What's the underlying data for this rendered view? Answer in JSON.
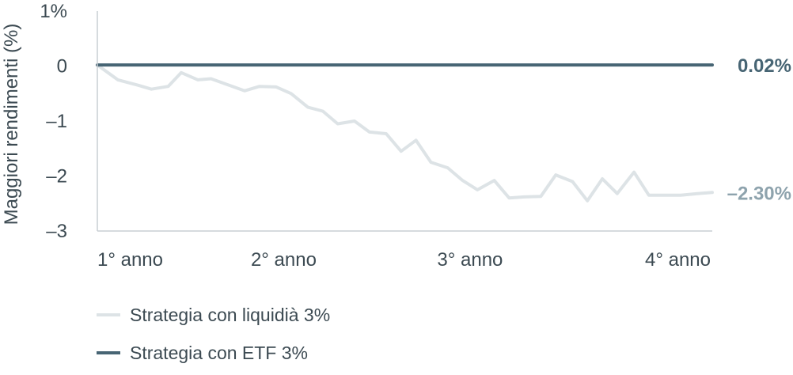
{
  "chart_data": {
    "type": "line",
    "ylabel": "Maggiori rendimenti (%)",
    "y_ticks": [
      {
        "value": 1,
        "label": "1%"
      },
      {
        "value": 0,
        "label": "0"
      },
      {
        "value": -1,
        "label": "–1"
      },
      {
        "value": -2,
        "label": "–2"
      },
      {
        "value": -3,
        "label": "–3"
      }
    ],
    "ylim": [
      -3,
      1
    ],
    "x_ticks": [
      {
        "value": 1,
        "label": "1° anno"
      },
      {
        "value": 2,
        "label": "2° anno"
      },
      {
        "value": 3,
        "label": "3° anno"
      },
      {
        "value": 4,
        "label": "4° anno"
      }
    ],
    "xlim": [
      1,
      4.3
    ],
    "grid": false,
    "legend_position": "bottom-left",
    "series": [
      {
        "name": "Strategia con liquidià 3%",
        "color": "#dde3e6",
        "end_label": "–2.30%",
        "end_label_color": "#8ea3ad",
        "x": [
          1.0,
          1.11,
          1.22,
          1.29,
          1.38,
          1.45,
          1.54,
          1.61,
          1.7,
          1.79,
          1.87,
          1.96,
          2.04,
          2.13,
          2.21,
          2.29,
          2.38,
          2.46,
          2.55,
          2.63,
          2.71,
          2.79,
          2.88,
          2.96,
          3.04,
          3.13,
          3.21,
          3.29,
          3.38,
          3.46,
          3.55,
          3.63,
          3.71,
          3.79,
          3.88,
          3.96,
          4.05,
          4.13,
          4.22,
          4.3
        ],
        "values": [
          0.02,
          -0.25,
          -0.35,
          -0.42,
          -0.37,
          -0.12,
          -0.25,
          -0.23,
          -0.34,
          -0.45,
          -0.37,
          -0.38,
          -0.5,
          -0.75,
          -0.82,
          -1.05,
          -1.0,
          -1.2,
          -1.23,
          -1.55,
          -1.35,
          -1.75,
          -1.85,
          -2.08,
          -2.25,
          -2.08,
          -2.4,
          -2.38,
          -2.37,
          -1.98,
          -2.1,
          -2.45,
          -2.05,
          -2.32,
          -1.93,
          -2.35,
          -2.35,
          -2.35,
          -2.32,
          -2.3
        ]
      },
      {
        "name": "Strategia con ETF 3%",
        "color": "#476574",
        "end_label": "0.02%",
        "end_label_color": "#476574",
        "x": [
          1.0,
          4.3
        ],
        "values": [
          0.02,
          0.02
        ]
      }
    ]
  }
}
